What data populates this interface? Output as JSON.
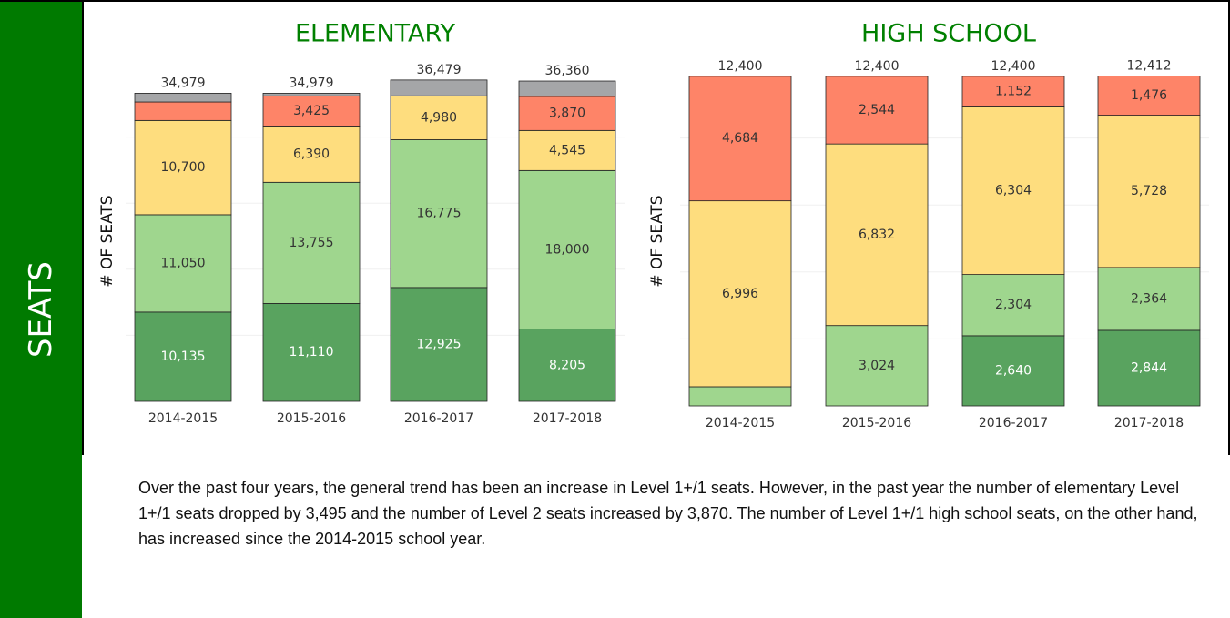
{
  "sidebar_label": "SEATS",
  "chart_data": [
    {
      "type": "bar",
      "stacked": true,
      "title": "ELEMENTARY",
      "title_color": "#008000",
      "y_label": "# OF SEATS",
      "categories": [
        "2014-2015",
        "2015-2016",
        "2016-2017",
        "2017-2018"
      ],
      "ylim": [
        0,
        37500
      ],
      "totals": [
        34979,
        34979,
        36479,
        36360
      ],
      "total_labels": [
        "34,979",
        "34,979",
        "36,479",
        "36,360"
      ],
      "series": [
        {
          "color": "#59a35f",
          "label_color": "#ffffff",
          "values": [
            10135,
            11110,
            12925,
            8205
          ],
          "value_labels": [
            "10,135",
            "11,110",
            "12,925",
            "8,205"
          ]
        },
        {
          "color": "#9fd68e",
          "label_color": "#333333",
          "values": [
            11050,
            13755,
            16775,
            18000
          ],
          "value_labels": [
            "11,050",
            "13,755",
            "16,775",
            "18,000"
          ]
        },
        {
          "color": "#fedd7e",
          "label_color": "#333333",
          "values": [
            10700,
            6390,
            4980,
            4545
          ],
          "value_labels": [
            "10,700",
            "6,390",
            "4,980",
            "4,545"
          ]
        },
        {
          "color": "#fe8468",
          "label_color": "#333333",
          "values": [
            2100,
            3425,
            0,
            3870
          ],
          "value_labels": [
            null,
            "3,425",
            null,
            "3,870"
          ]
        },
        {
          "color": "#a5a6a8",
          "label_color": "#333333",
          "values": [
            994,
            299,
            1799,
            1740
          ],
          "value_labels": [
            null,
            null,
            null,
            null
          ]
        }
      ]
    },
    {
      "type": "bar",
      "stacked": true,
      "title": "HIGH SCHOOL",
      "title_color": "#008000",
      "y_label": "# OF SEATS",
      "categories": [
        "2014-2015",
        "2015-2016",
        "2016-2017",
        "2017-2018"
      ],
      "ylim": [
        0,
        12600
      ],
      "totals": [
        12400,
        12400,
        12400,
        12412
      ],
      "total_labels": [
        "12,400",
        "12,400",
        "12,400",
        "12,412"
      ],
      "series": [
        {
          "color": "#59a35f",
          "label_color": "#ffffff",
          "values": [
            0,
            0,
            2640,
            2844
          ],
          "value_labels": [
            null,
            null,
            "2,640",
            "2,844"
          ]
        },
        {
          "color": "#9fd68e",
          "label_color": "#333333",
          "values": [
            720,
            3024,
            2304,
            2364
          ],
          "value_labels": [
            null,
            "3,024",
            "2,304",
            "2,364"
          ]
        },
        {
          "color": "#fedd7e",
          "label_color": "#333333",
          "values": [
            6996,
            6832,
            6304,
            5728
          ],
          "value_labels": [
            "6,996",
            "6,832",
            "6,304",
            "5,728"
          ]
        },
        {
          "color": "#fe8468",
          "label_color": "#333333",
          "values": [
            4684,
            2544,
            1152,
            1476
          ],
          "value_labels": [
            "4,684",
            "2,544",
            "1,152",
            "1,476"
          ]
        }
      ]
    }
  ],
  "paragraph": "Over the past four years, the general trend has been an increase in Level 1+/1 seats. However, in the past year the number of elementary Level 1+/1 seats dropped by 3,495 and the number of Level 2 seats increased by 3,870. The number of Level 1+/1 high school seats, on the other hand, has increased since the 2014-2015 school year."
}
